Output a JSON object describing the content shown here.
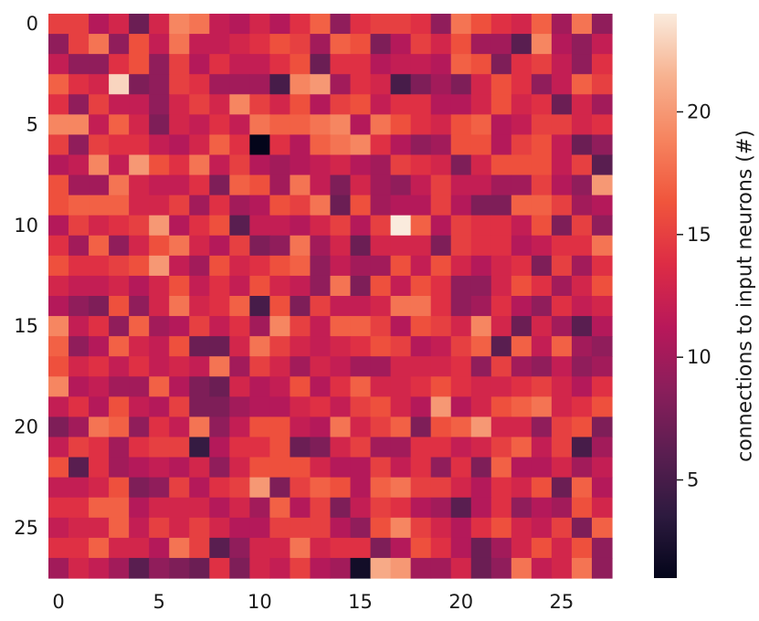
{
  "chart_data": {
    "type": "heatmap",
    "rows": 28,
    "cols": 28,
    "x_ticks": [
      0,
      5,
      10,
      15,
      20,
      25
    ],
    "y_ticks": [
      0,
      5,
      10,
      15,
      20,
      25
    ],
    "colorbar": {
      "label": "connections to input neurons (#)",
      "ticks": [
        5,
        10,
        15,
        20
      ],
      "range": [
        1,
        24
      ]
    },
    "colormap_stops": [
      "#03051a",
      "#2d1a3f",
      "#5b1e51",
      "#8a1e5b",
      "#b8185a",
      "#dd2c45",
      "#f0553c",
      "#f6845f",
      "#f7b290",
      "#faebdd"
    ],
    "notable_cells": [
      {
        "row": 3,
        "col": 3,
        "value": 23
      },
      {
        "row": 6,
        "col": 10,
        "value": 1
      },
      {
        "row": 10,
        "col": 17,
        "value": 24
      },
      {
        "row": 27,
        "col": 15,
        "value": 2
      },
      {
        "row": 27,
        "col": 16,
        "value": 21
      },
      {
        "row": 21,
        "col": 7,
        "value": 4
      },
      {
        "row": 3,
        "col": 12,
        "value": 19
      },
      {
        "row": 3,
        "col": 13,
        "value": 20
      },
      {
        "row": 6,
        "col": 15,
        "value": 19
      },
      {
        "row": 1,
        "col": 24,
        "value": 19
      },
      {
        "row": 15,
        "col": 11,
        "value": 19
      }
    ]
  }
}
